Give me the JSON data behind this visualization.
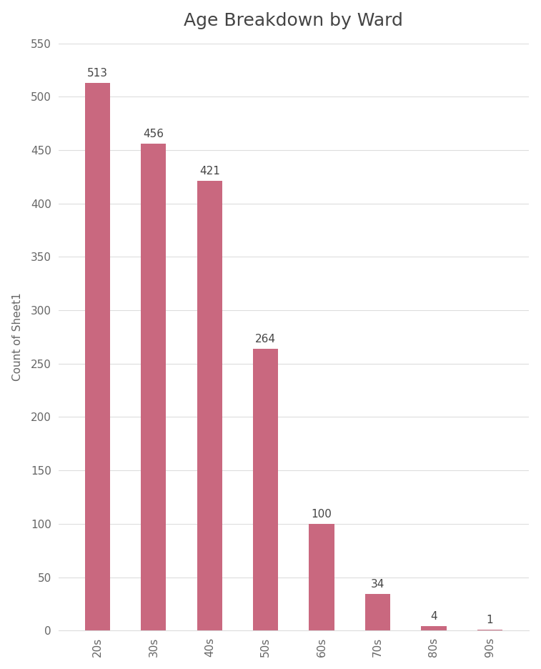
{
  "title": "Age Breakdown by Ward",
  "categories": [
    "20s",
    "30s",
    "40s",
    "50s",
    "60s",
    "70s",
    "80s",
    "90s"
  ],
  "values": [
    513,
    456,
    421,
    264,
    100,
    34,
    4,
    1
  ],
  "bar_color": "#c9687f",
  "ylabel": "Count of Sheet1",
  "ylim": [
    0,
    550
  ],
  "yticks": [
    0,
    50,
    100,
    150,
    200,
    250,
    300,
    350,
    400,
    450,
    500,
    550
  ],
  "title_fontsize": 18,
  "label_fontsize": 11,
  "tick_fontsize": 11,
  "annotation_fontsize": 11,
  "background_color": "#ffffff",
  "grid_color": "#dddddd",
  "bar_width": 0.45
}
